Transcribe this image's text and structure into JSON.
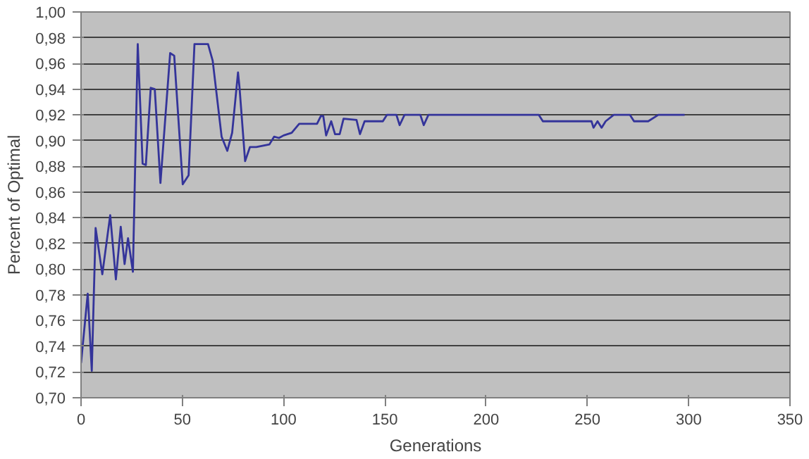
{
  "chart_data": {
    "type": "line",
    "xlabel": "Generations",
    "ylabel": "Percent of Optimal",
    "xlim": [
      0,
      350
    ],
    "xticks": [
      0,
      50,
      100,
      150,
      200,
      250,
      300,
      350
    ],
    "ylim": [
      0.7,
      1.0
    ],
    "yticks": [
      {
        "value": 0.7,
        "label": "0,70"
      },
      {
        "value": 0.72,
        "label": "0,72"
      },
      {
        "value": 0.74,
        "label": "0,74"
      },
      {
        "value": 0.76,
        "label": "0,76"
      },
      {
        "value": 0.78,
        "label": "0,78"
      },
      {
        "value": 0.8,
        "label": "0,80"
      },
      {
        "value": 0.82,
        "label": "0,82"
      },
      {
        "value": 0.84,
        "label": "0,84"
      },
      {
        "value": 0.86,
        "label": "0,86"
      },
      {
        "value": 0.88,
        "label": "0,88"
      },
      {
        "value": 0.9,
        "label": "0,90"
      },
      {
        "value": 0.92,
        "label": "0,92"
      },
      {
        "value": 0.94,
        "label": "0,94"
      },
      {
        "value": 0.96,
        "label": "0,96"
      },
      {
        "value": 0.98,
        "label": "0,98"
      },
      {
        "value": 1.0,
        "label": "1,00"
      }
    ],
    "grid": "y",
    "marker": "none",
    "line_style": "solid",
    "series": [
      {
        "color": "#34349a",
        "x": [
          0,
          3.3,
          5.3,
          7.2,
          10.5,
          14.4,
          17.2,
          19.6,
          21.5,
          23.2,
          25.6,
          28,
          30.4,
          32,
          34.4,
          36.4,
          39.2,
          44,
          46,
          50.2,
          53.1,
          56,
          62.7,
          65,
          69.4,
          72.2,
          74.6,
          77.5,
          78.2,
          81,
          83.4,
          86.5,
          93,
          95.3,
          97.7,
          100,
          104,
          107.7,
          116.5,
          118.4,
          119.6,
          121,
          123.5,
          125.4,
          127.7,
          129.6,
          136,
          137.7,
          140,
          149,
          151,
          155.7,
          157.3,
          159.7,
          167.5,
          169.2,
          171.5,
          226,
          228,
          252,
          253,
          255,
          257,
          259,
          263,
          271,
          273,
          280,
          285,
          298
        ],
        "values": [
          0.727,
          0.781,
          0.721,
          0.832,
          0.796,
          0.842,
          0.792,
          0.833,
          0.804,
          0.824,
          0.798,
          0.975,
          0.882,
          0.881,
          0.941,
          0.94,
          0.867,
          0.968,
          0.966,
          0.866,
          0.873,
          0.975,
          0.975,
          0.962,
          0.903,
          0.892,
          0.906,
          0.953,
          0.942,
          0.884,
          0.895,
          0.895,
          0.897,
          0.903,
          0.902,
          0.904,
          0.906,
          0.913,
          0.913,
          0.919,
          0.919,
          0.904,
          0.915,
          0.905,
          0.905,
          0.917,
          0.916,
          0.905,
          0.915,
          0.915,
          0.92,
          0.92,
          0.912,
          0.92,
          0.92,
          0.912,
          0.92,
          0.92,
          0.915,
          0.915,
          0.91,
          0.915,
          0.91,
          0.915,
          0.92,
          0.92,
          0.915,
          0.915,
          0.92,
          0.92
        ]
      }
    ]
  }
}
